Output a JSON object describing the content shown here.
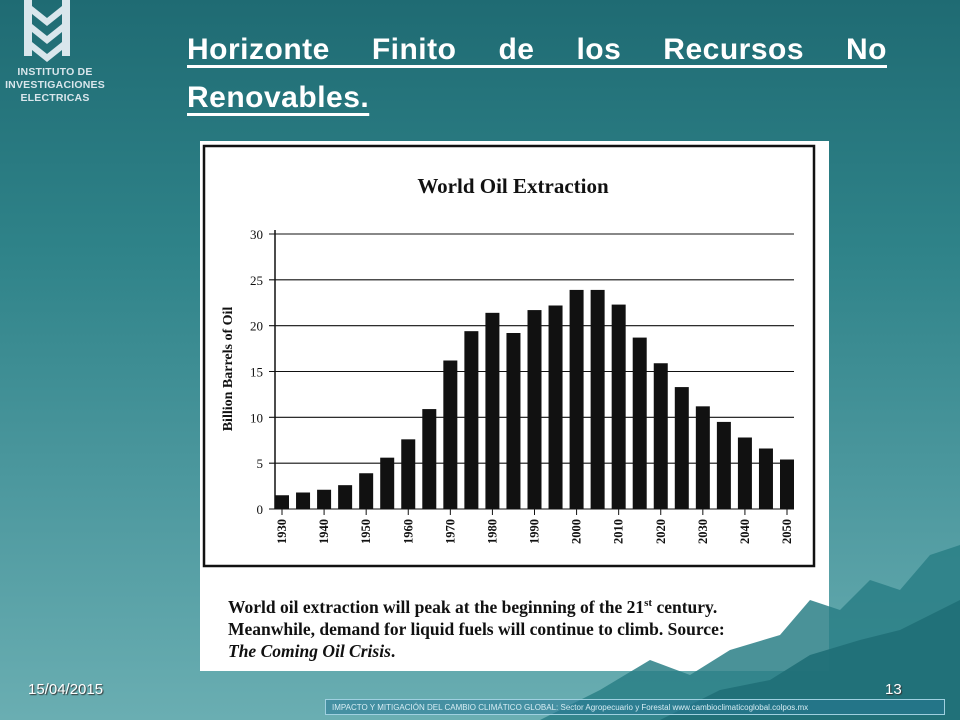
{
  "logo": {
    "line1": "INSTITUTO DE",
    "line2": "INVESTIGACIONES",
    "line3": "ELECTRICAS"
  },
  "slide": {
    "title": "Horizonte Finito de los Recursos No Renovables.",
    "date": "15/04/2015",
    "page": "13",
    "footer_text": "IMPACTO Y MITIGACIÓN DEL CAMBIO CLIMÁTICO GLOBAL: Sector Agropecuario y Forestal www.cambioclimaticoglobal.colpos.mx"
  },
  "caption": {
    "line1_before": "World oil extraction will peak at the beginning of the 21",
    "line1_sup": "st",
    "line1_after": " century.",
    "line2": "Meanwhile, demand for liquid fuels will continue to climb. Source:",
    "line3": "The Coming Oil Crisis",
    "line3_end": "."
  },
  "chart_data": {
    "type": "bar",
    "title": "World Oil Extraction",
    "ylabel": "Billion Barrels of Oil",
    "xlabel": "",
    "ylim": [
      0,
      30
    ],
    "yticks": [
      0,
      5,
      10,
      15,
      20,
      25,
      30
    ],
    "xtick_labels": [
      "1930",
      "1940",
      "1950",
      "1960",
      "1970",
      "1980",
      "1990",
      "2000",
      "2010",
      "2020",
      "2030",
      "2040",
      "2050"
    ],
    "grid": true,
    "x": [
      1930,
      1935,
      1940,
      1945,
      1950,
      1955,
      1960,
      1965,
      1970,
      1975,
      1980,
      1985,
      1990,
      1995,
      2000,
      2005,
      2010,
      2015,
      2020,
      2025,
      2030,
      2035,
      2040,
      2045,
      2050
    ],
    "values": [
      1.5,
      1.8,
      2.1,
      2.6,
      3.9,
      5.6,
      7.6,
      10.9,
      16.2,
      19.4,
      21.4,
      19.2,
      21.7,
      22.2,
      23.9,
      23.9,
      22.3,
      18.7,
      15.9,
      13.3,
      11.2,
      9.5,
      7.8,
      6.6,
      5.4
    ],
    "bar_color": "#111111"
  }
}
